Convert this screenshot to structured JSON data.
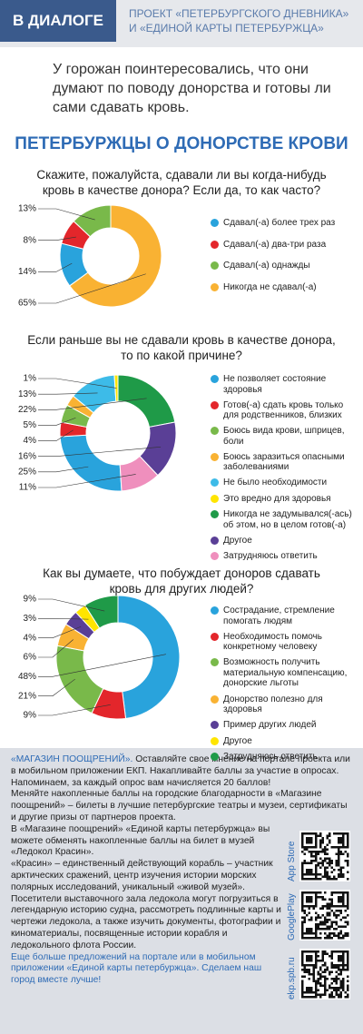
{
  "header": {
    "badge": "В ДИАЛОГЕ",
    "project": "ПРОЕКТ «ПЕТЕРБУРГСКОГО ДНЕВНИКА» И «ЕДИНОЙ КАРТЫ ПЕТЕРБУРЖЦА»"
  },
  "intro": "У горожан поинтересовались, что они думают по поводу донорства и готовы ли сами сдавать кровь.",
  "title": "ПЕТЕРБУРЖЦЫ О ДОНОРСТВЕ КРОВИ",
  "chart_data": [
    {
      "type": "donut",
      "title": "Скажите, пожалуйста, сдавали ли вы когда-нибудь кровь в качестве донора? Если да, то как часто?",
      "categories": [
        "Сдавал(-а) более трех раз",
        "Сдавал(-а) два-три раза",
        "Сдавал(-а) однажды",
        "Никогда не сдавал(-а)"
      ],
      "values": [
        14,
        8,
        13,
        65
      ],
      "value_labels": [
        "14%",
        "8%",
        "13%",
        "65%"
      ],
      "colors": [
        "#29a3dc",
        "#e3262b",
        "#79b94a",
        "#f9b233"
      ]
    },
    {
      "type": "donut",
      "title": "Если раньше вы не сдавали кровь в качестве донора, то по какой причине?",
      "categories": [
        "Не позволяет состояние здоровья",
        "Готов(-а) сдать кровь только для родственников, близких",
        "Боюсь вида крови, шприцев, боли",
        "Боюсь заразиться опасными заболеваниями",
        "Не было необходимости",
        "Это вредно для здоровья",
        "Никогда не задумывался(-ась) об этом, но в целом готов(-а)",
        "Другое",
        "Затрудняюсь ответить"
      ],
      "values": [
        25,
        4,
        5,
        3,
        13,
        1,
        22,
        16,
        11
      ],
      "value_labels": [
        "25%",
        "4%",
        "5%",
        null,
        "13%",
        "1%",
        "22%",
        "16%",
        "11%"
      ],
      "colors": [
        "#29a3dc",
        "#e3262b",
        "#79b94a",
        "#f9b233",
        "#3dbbe8",
        "#ffe500",
        "#1f9a48",
        "#5a3f96",
        "#ef8fbd"
      ]
    },
    {
      "type": "donut",
      "title": "Как вы думаете, что побуждает доноров сдавать кровь для других людей?",
      "categories": [
        "Сострадание, стремление помогать людям",
        "Необходимость помочь конкретному человеку",
        "Возможность получить материальную компенсацию, донорские льготы",
        "Донорство полезно для здоровья",
        "Пример других людей",
        "Другое",
        "Затрудняюсь ответить"
      ],
      "values": [
        48,
        9,
        21,
        6,
        4,
        3,
        9
      ],
      "value_labels": [
        "48%",
        "9%",
        "21%",
        "6%",
        "4%",
        "3%",
        "9%"
      ],
      "colors": [
        "#29a3dc",
        "#e3262b",
        "#79b94a",
        "#f9b233",
        "#5a3f96",
        "#ffe500",
        "#1f9a48"
      ]
    }
  ],
  "footer": {
    "lead": "«МАГАЗИН ПООЩРЕНИЙ».",
    "paragraphs": [
      "Оставляйте свое мнение на портале проекта или в мобильном приложении ЕКП. Накапливайте баллы за участие в опросах. Напоминаем, за каждый опрос вам начисляется 20 баллов!",
      "Меняйте накопленные баллы на городские благодарности в «Магазине поощрений» – билеты в лучшие петербургские театры и музеи, сертификаты и другие призы от партнеров проекта.",
      "В «Магазине поощрений» «Единой карты петербуржца» вы можете обменять накопленные баллы на билет в музей «Ледокол Красин».",
      "«Красин» – единственный действующий корабль – участник арктических сражений, центр изучения истории морских полярных исследований, уникальный «живой музей». Посетители выставочного зала ледокола могут погрузиться в легендарную историю судна, рассмотреть подлинные карты и чертежи ледокола, а также изучить документы, фотографии и киноматериалы, посвященные истории корабля и ледокольного флота России."
    ],
    "closing": "Еще больше предложений на портале или в мобильном приложении «Единой карты петербуржца». Сделаем наш город вместе лучше!",
    "stores": [
      "App Store",
      "GooglePlay",
      "ekp.spb.ru"
    ]
  }
}
